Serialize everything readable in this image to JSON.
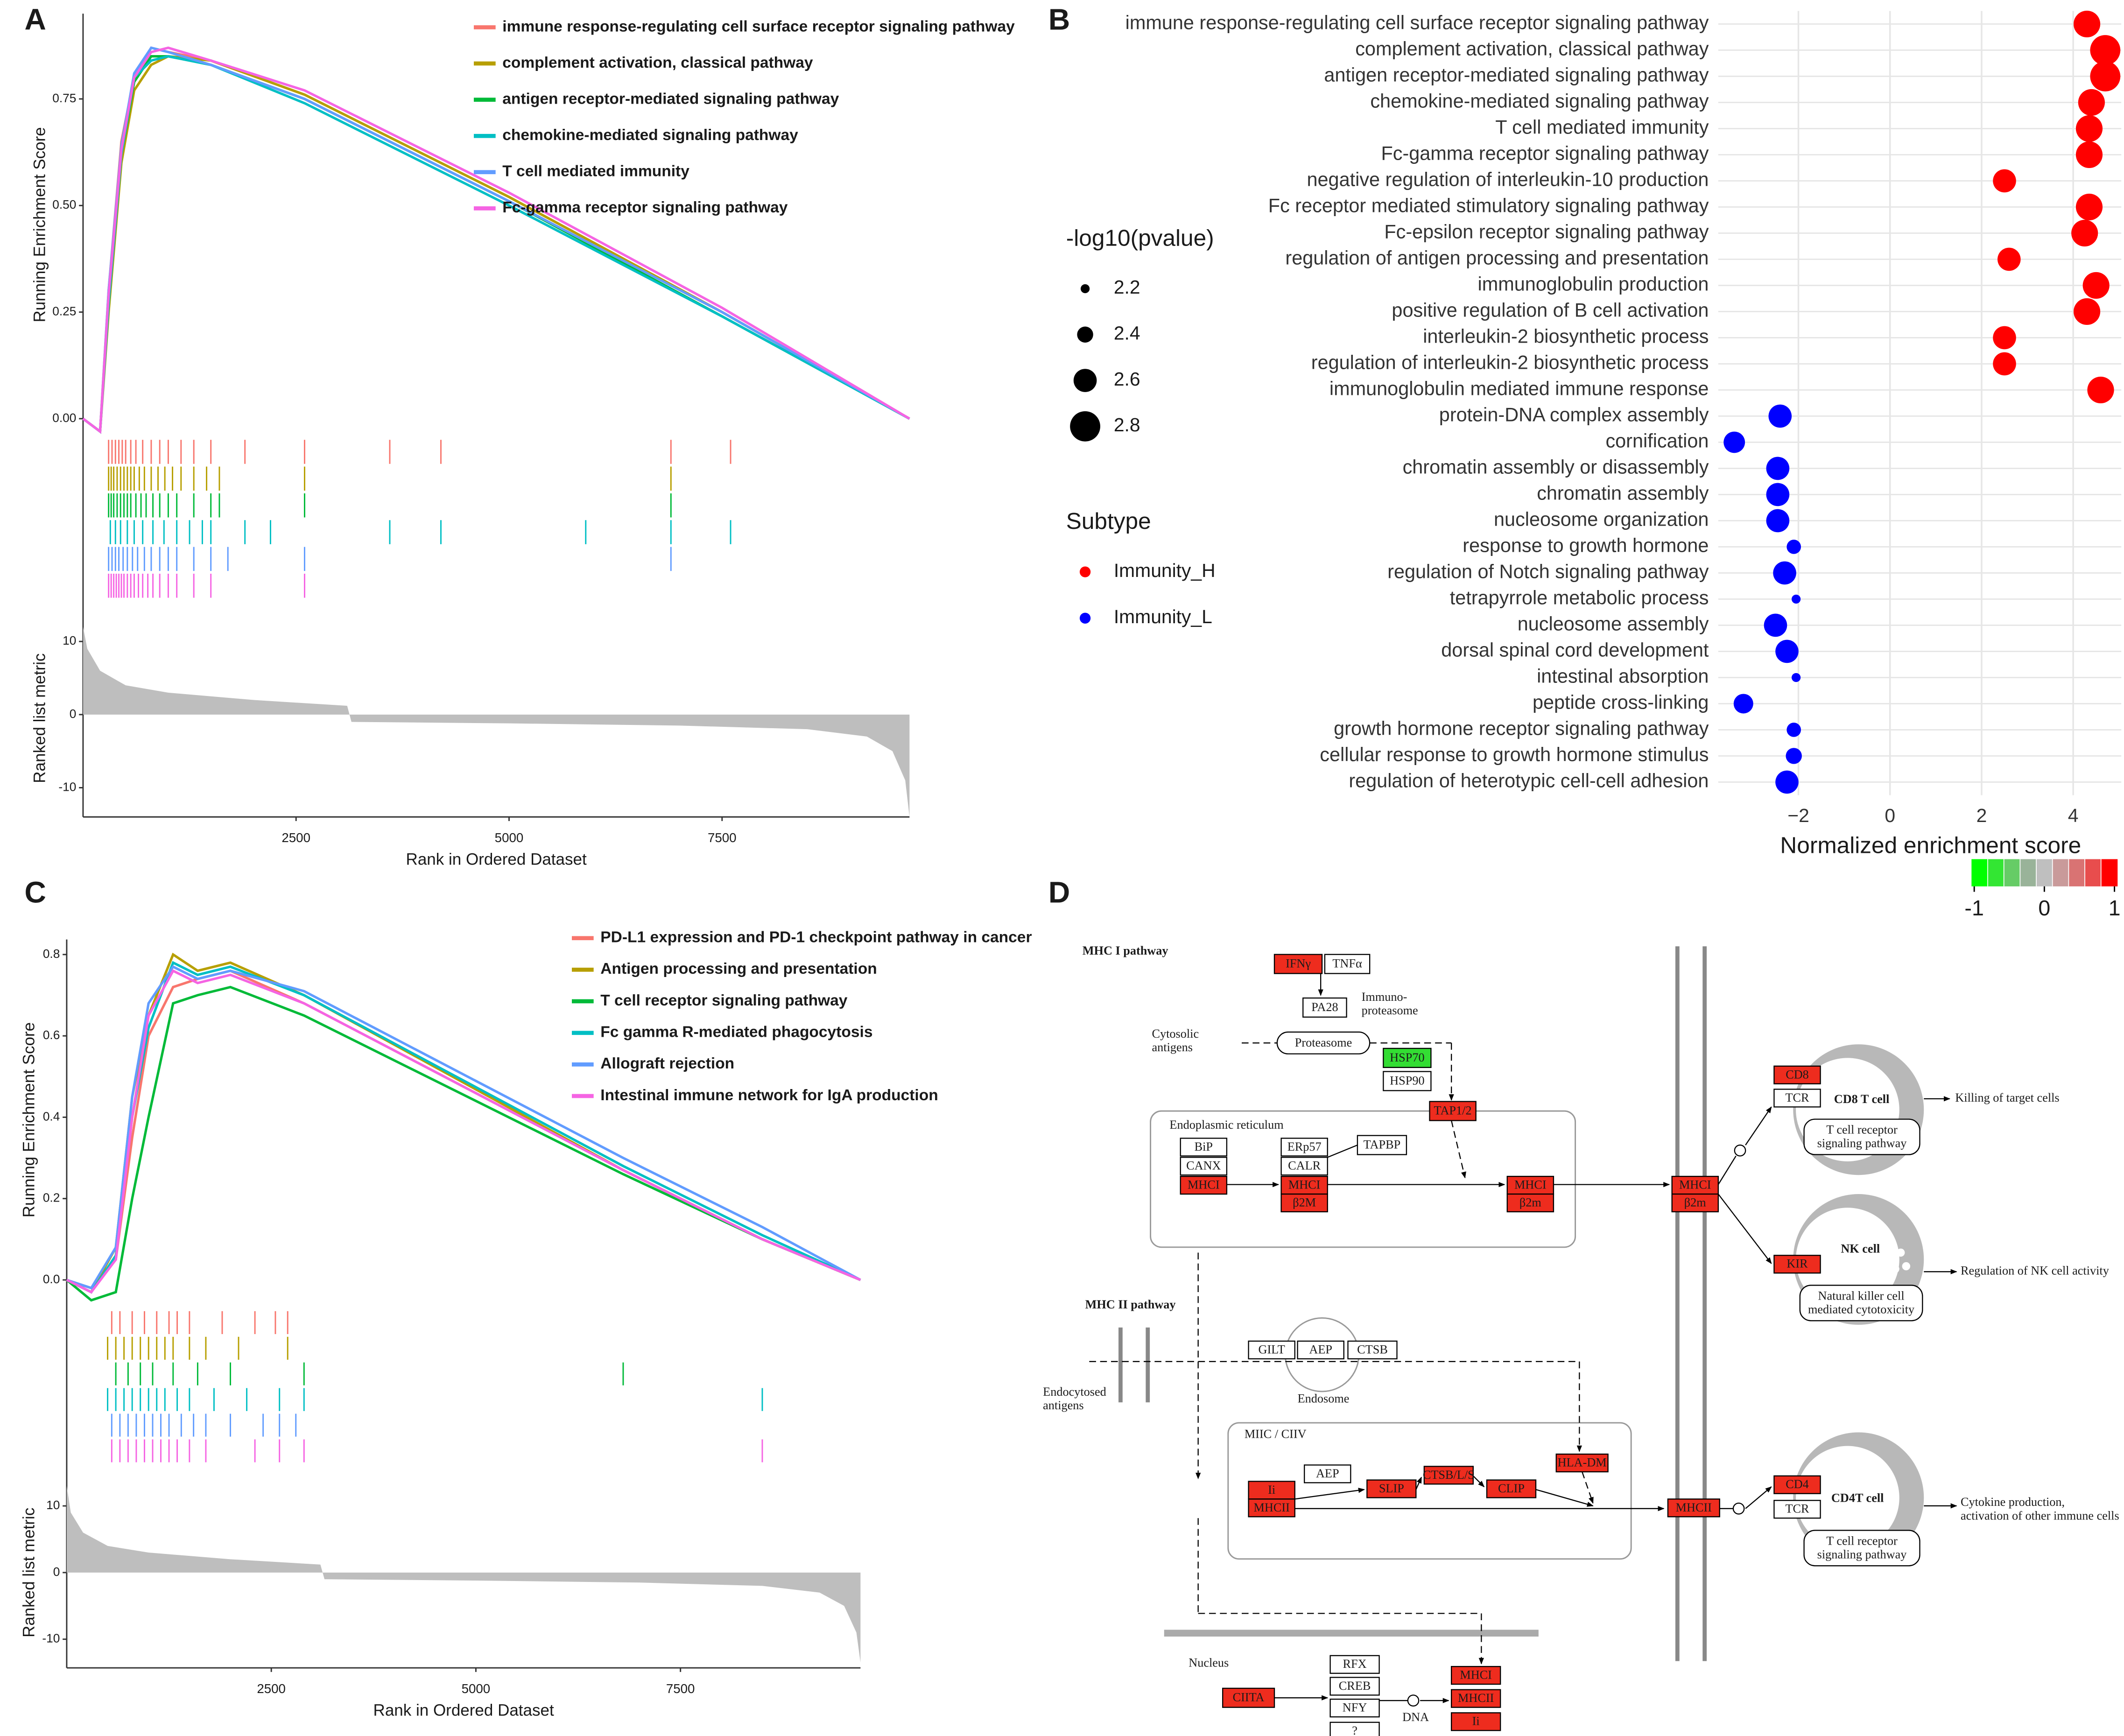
{
  "chart_data": [
    {
      "type": "gsea",
      "label": "A",
      "ylabel": "Running Enrichment Score",
      "xlabel": "Rank in Ordered Dataset",
      "xlim": [
        0,
        9700
      ],
      "xticks": [
        2500,
        5000,
        7500
      ],
      "ylim": [
        -0.04,
        0.95
      ],
      "yticks": [
        {
          "value": 0,
          "label": "0.00"
        },
        0.25,
        {
          "value": 0.5,
          "label": "0.50"
        },
        0.75
      ],
      "x": [
        0,
        200,
        300,
        450,
        600,
        800,
        1000,
        1500,
        2600,
        5000,
        7500,
        9700
      ],
      "series": [
        {
          "name": "immune response-regulating cell surface receptor signaling pathway",
          "color": "#f8766d",
          "values": [
            0,
            -0.03,
            0.3,
            0.65,
            0.8,
            0.87,
            0.86,
            0.84,
            0.76,
            0.52,
            0.25,
            0
          ],
          "hits": [
            300,
            340,
            380,
            420,
            460,
            500,
            560,
            620,
            700,
            800,
            900,
            1000,
            1150,
            1300,
            1500,
            1900,
            2600,
            3600,
            4200,
            6900,
            7600
          ]
        },
        {
          "name": "complement activation, classical pathway",
          "color": "#b79f00",
          "values": [
            0,
            -0.03,
            0.25,
            0.6,
            0.77,
            0.83,
            0.85,
            0.84,
            0.76,
            0.52,
            0.25,
            0
          ],
          "hits": [
            300,
            330,
            360,
            400,
            440,
            480,
            520,
            560,
            600,
            660,
            720,
            800,
            880,
            960,
            1050,
            1150,
            1300,
            1450,
            1600,
            2600,
            6900
          ]
        },
        {
          "name": "antigen receptor-mediated signaling pathway",
          "color": "#00ba38",
          "values": [
            0,
            -0.03,
            0.28,
            0.62,
            0.79,
            0.85,
            0.85,
            0.83,
            0.75,
            0.51,
            0.24,
            0
          ],
          "hits": [
            300,
            330,
            360,
            400,
            440,
            480,
            520,
            560,
            620,
            680,
            740,
            820,
            900,
            1000,
            1100,
            1300,
            1500,
            1600,
            2600,
            6900
          ]
        },
        {
          "name": "chemokine-mediated signaling pathway",
          "color": "#00bfc4",
          "values": [
            0,
            -0.03,
            0.27,
            0.62,
            0.8,
            0.84,
            0.85,
            0.83,
            0.74,
            0.5,
            0.24,
            0
          ],
          "hits": [
            320,
            380,
            440,
            520,
            600,
            700,
            820,
            950,
            1100,
            1250,
            1400,
            1500,
            1900,
            2200,
            3600,
            4200,
            5900,
            6900,
            7600
          ]
        },
        {
          "name": "T cell mediated immunity",
          "color": "#619cff",
          "values": [
            0,
            -0.03,
            0.3,
            0.64,
            0.81,
            0.87,
            0.86,
            0.83,
            0.75,
            0.51,
            0.25,
            0
          ],
          "hits": [
            300,
            340,
            380,
            420,
            470,
            520,
            580,
            640,
            720,
            800,
            900,
            1000,
            1100,
            1300,
            1500,
            1700,
            2600,
            6900
          ]
        },
        {
          "name": "Fc-gamma receptor signaling pathway",
          "color": "#f564e3",
          "values": [
            0,
            -0.03,
            0.29,
            0.63,
            0.8,
            0.86,
            0.87,
            0.84,
            0.77,
            0.53,
            0.26,
            0
          ],
          "hits": [
            300,
            330,
            360,
            390,
            420,
            450,
            480,
            520,
            560,
            600,
            650,
            700,
            760,
            820,
            900,
            1000,
            1100,
            1300,
            1500,
            2600
          ]
        }
      ],
      "metric": {
        "ylabel": "Ranked list metric",
        "color": "#bebebe",
        "ylim": [
          -14,
          13
        ],
        "yticks": [
          -10,
          0,
          10
        ],
        "x": [
          0,
          50,
          200,
          500,
          1000,
          2000,
          3100,
          3150,
          5000,
          7000,
          8500,
          9200,
          9500,
          9650,
          9700
        ],
        "values": [
          12,
          9,
          6,
          4,
          3,
          2,
          1.2,
          -1,
          -1.2,
          -1.5,
          -2,
          -3,
          -5,
          -9,
          -14
        ]
      }
    },
    {
      "type": "dot",
      "label": "B",
      "xlabel": "Normalized enrichment score",
      "xlim": [
        -3.75,
        5.05
      ],
      "xticks": [
        {
          "value": -2,
          "label": "−2"
        },
        0,
        2,
        4
      ],
      "grid": true,
      "categories": [
        "immune response-regulating cell surface receptor signaling pathway",
        "complement activation, classical pathway",
        "antigen receptor-mediated signaling pathway",
        "chemokine-mediated signaling pathway",
        "T cell mediated immunity",
        "Fc-gamma receptor signaling pathway",
        "negative regulation of interleukin-10 production",
        "Fc receptor mediated stimulatory signaling pathway",
        "Fc-epsilon receptor signaling pathway",
        "regulation of antigen processing and presentation",
        "immunoglobulin production",
        "positive regulation of B cell activation",
        "interleukin-2 biosynthetic process",
        "regulation of interleukin-2 biosynthetic process",
        "immunoglobulin mediated immune response",
        "protein-DNA complex assembly",
        "cornification",
        "chromatin assembly or disassembly",
        "chromatin assembly",
        "nucleosome organization",
        "response to growth hormone",
        "regulation of Notch signaling pathway",
        "tetrapyrrole metabolic process",
        "nucleosome assembly",
        "dorsal spinal cord development",
        "intestinal absorption",
        "peptide cross-linking",
        "growth hormone receptor signaling pathway",
        "cellular response to growth hormone stimulus",
        "regulation of heterotypic cell-cell adhesion"
      ],
      "legend_title": "Subtype",
      "series": [
        {
          "name": "Immunity_H",
          "color": "#ff0000",
          "values": [
            4.3,
            4.7,
            4.7,
            4.4,
            4.35,
            4.35,
            2.5,
            4.35,
            4.25,
            2.6,
            4.5,
            4.3,
            2.5,
            2.5,
            4.6,
            null,
            null,
            null,
            null,
            null,
            null,
            null,
            null,
            null,
            null,
            null,
            null,
            null,
            null,
            null
          ],
          "sizes": [
            2.7,
            2.8,
            2.8,
            2.7,
            2.7,
            2.7,
            2.6,
            2.7,
            2.7,
            2.6,
            2.7,
            2.7,
            2.6,
            2.6,
            2.7,
            null,
            null,
            null,
            null,
            null,
            null,
            null,
            null,
            null,
            null,
            null,
            null,
            null,
            null,
            null
          ]
        },
        {
          "name": "Immunity_L",
          "color": "#0000ff",
          "values": [
            null,
            null,
            null,
            null,
            null,
            null,
            null,
            null,
            null,
            null,
            null,
            null,
            null,
            null,
            null,
            -2.4,
            -3.4,
            -2.45,
            -2.45,
            -2.45,
            -2.1,
            -2.3,
            -2.05,
            -2.5,
            -2.25,
            -2.05,
            -3.2,
            -2.1,
            -2.1,
            -2.25
          ],
          "sizes": [
            null,
            null,
            null,
            null,
            null,
            null,
            null,
            null,
            null,
            null,
            null,
            null,
            null,
            null,
            null,
            2.6,
            2.55,
            2.6,
            2.6,
            2.6,
            2.35,
            2.6,
            2.2,
            2.6,
            2.6,
            2.2,
            2.5,
            2.35,
            2.4,
            2.6
          ]
        }
      ],
      "size_legend": {
        "title": "-log10(pvalue)",
        "values": [
          2.2,
          2.4,
          2.6,
          2.8
        ]
      }
    },
    {
      "type": "gsea",
      "label": "C",
      "ylabel": "Running Enrichment Score",
      "xlabel": "Rank in Ordered Dataset",
      "xlim": [
        0,
        9700
      ],
      "xticks": [
        2500,
        5000,
        7500
      ],
      "ylim": [
        -0.05,
        0.837
      ],
      "yticks": [
        {
          "value": 0,
          "label": "0.0"
        },
        0.2,
        0.4,
        0.6,
        0.8
      ],
      "x": [
        0,
        300,
        600,
        800,
        1000,
        1300,
        1600,
        2000,
        2900,
        6800,
        8500,
        9700
      ],
      "series": [
        {
          "name": "PD-L1 expression and PD-1 checkpoint pathway in cancer",
          "color": "#f8766d",
          "values": [
            0,
            -0.02,
            0.05,
            0.35,
            0.6,
            0.72,
            0.74,
            0.76,
            0.68,
            0.27,
            0.1,
            0
          ],
          "hits": [
            550,
            650,
            800,
            950,
            1100,
            1250,
            1350,
            1500,
            1900,
            2300,
            2550,
            2700
          ]
        },
        {
          "name": "Antigen processing and presentation",
          "color": "#b79f00",
          "values": [
            0,
            -0.03,
            0.08,
            0.45,
            0.65,
            0.8,
            0.76,
            0.78,
            0.7,
            0.27,
            0.1,
            0
          ],
          "hits": [
            500,
            600,
            700,
            800,
            900,
            1000,
            1100,
            1200,
            1300,
            1500,
            1700,
            2100,
            2700
          ]
        },
        {
          "name": "T cell receptor signaling pathway",
          "color": "#00ba38",
          "values": [
            0,
            -0.05,
            -0.03,
            0.2,
            0.4,
            0.68,
            0.7,
            0.72,
            0.65,
            0.26,
            0.1,
            0
          ],
          "hits": [
            600,
            750,
            900,
            1050,
            1300,
            1600,
            2000,
            2900,
            6800
          ]
        },
        {
          "name": "Fc gamma R-mediated phagocytosis",
          "color": "#00bfc4",
          "values": [
            0,
            -0.03,
            0.06,
            0.4,
            0.62,
            0.78,
            0.75,
            0.77,
            0.7,
            0.28,
            0.11,
            0
          ],
          "hits": [
            500,
            600,
            700,
            800,
            900,
            1000,
            1100,
            1200,
            1350,
            1500,
            1800,
            2200,
            2600,
            2900,
            8500
          ]
        },
        {
          "name": "Allograft rejection",
          "color": "#619cff",
          "values": [
            0,
            -0.02,
            0.08,
            0.45,
            0.68,
            0.77,
            0.74,
            0.76,
            0.71,
            0.3,
            0.13,
            0
          ],
          "hits": [
            550,
            650,
            750,
            850,
            950,
            1050,
            1150,
            1250,
            1400,
            1550,
            1700,
            2000,
            2400,
            2600,
            2800
          ]
        },
        {
          "name": "Intestinal immune network for IgA production",
          "color": "#f564e3",
          "values": [
            0,
            -0.03,
            0.05,
            0.4,
            0.65,
            0.76,
            0.73,
            0.75,
            0.68,
            0.27,
            0.1,
            0
          ],
          "hits": [
            550,
            650,
            750,
            850,
            950,
            1050,
            1150,
            1250,
            1350,
            1500,
            1700,
            2300,
            2600,
            2900,
            8500
          ]
        }
      ],
      "metric": {
        "ylabel": "Ranked list metric",
        "color": "#bebebe",
        "ylim": [
          -14.3,
          14.3
        ],
        "yticks": [
          -10,
          0,
          10
        ],
        "x": [
          0,
          50,
          200,
          500,
          1000,
          2000,
          3100,
          3150,
          5000,
          7000,
          8500,
          9200,
          9500,
          9650,
          9700
        ],
        "values": [
          13,
          9,
          6,
          4,
          3,
          2,
          1.2,
          -1,
          -1.2,
          -1.5,
          -2,
          -3,
          -5,
          -9,
          -13.5
        ]
      }
    }
  ],
  "diagram": {
    "label": "D",
    "color_scale": {
      "lim": [
        -1,
        1
      ],
      "ticks": [
        -1,
        0,
        1
      ],
      "colors": [
        "#00ff00",
        "#33e633",
        "#66cc66",
        "#99b399",
        "#bfbfbf",
        "#c99a9a",
        "#d97373",
        "#e84d4d",
        "#ff0000"
      ]
    },
    "boxes": [
      {
        "label": "IFNγ",
        "color": "#ee2c1e"
      },
      {
        "label": "TNFα",
        "color": "#ffffff"
      },
      {
        "label": "PA28",
        "color": "#ffffff"
      },
      {
        "label": "Proteasome",
        "color": "#ffffff"
      },
      {
        "label": "HSP70",
        "color": "#33dd33"
      },
      {
        "label": "HSP90",
        "color": "#ffffff"
      },
      {
        "label": "TAP1/2",
        "color": "#ee2c1e"
      },
      {
        "label": "BiP",
        "color": "#ffffff"
      },
      {
        "label": "CANX",
        "color": "#ffffff"
      },
      {
        "label": "MHCI",
        "color": "#ee2c1e"
      },
      {
        "label": "ERp57",
        "color": "#ffffff"
      },
      {
        "label": "CALR",
        "color": "#ffffff"
      },
      {
        "label": "MHCI",
        "color": "#ee2c1e"
      },
      {
        "label": "β2M",
        "color": "#ee2c1e"
      },
      {
        "label": "TAPBP",
        "color": "#ffffff"
      },
      {
        "label": "MHCI",
        "color": "#ee2c1e"
      },
      {
        "label": "β2m",
        "color": "#ee2c1e"
      },
      {
        "label": "MHCI",
        "color": "#ee2c1e"
      },
      {
        "label": "β2m",
        "color": "#ee2c1e"
      },
      {
        "label": "CD8",
        "color": "#ee2c1e"
      },
      {
        "label": "TCR",
        "color": "#ffffff"
      },
      {
        "label": [
          "T cell receptor",
          "signaling pathway"
        ],
        "color": "#ffffff"
      },
      {
        "label": "KIR",
        "color": "#ee2c1e"
      },
      {
        "label": [
          "Natural killer cell",
          "mediated cytotoxicity"
        ],
        "color": "#ffffff"
      },
      {
        "label": "GILT",
        "color": "#ffffff"
      },
      {
        "label": "AEP",
        "color": "#ffffff"
      },
      {
        "label": "CTSB",
        "color": "#ffffff"
      },
      {
        "label": "AEP",
        "color": "#ffffff"
      },
      {
        "label": "Ii",
        "color": "#ee2c1e"
      },
      {
        "label": "MHCII",
        "color": "#ee2c1e"
      },
      {
        "label": "SLIP",
        "color": "#ee2c1e"
      },
      {
        "label": "CTSB/L/S",
        "color": "#ee2c1e"
      },
      {
        "label": "CLIP",
        "color": "#ee2c1e"
      },
      {
        "label": "HLA-DM",
        "color": "#ee2c1e"
      },
      {
        "label": "MHCII",
        "color": "#ee2c1e"
      },
      {
        "label": "CD4",
        "color": "#ee2c1e"
      },
      {
        "label": "TCR",
        "color": "#ffffff"
      },
      {
        "label": [
          "T cell receptor",
          "signaling pathway"
        ],
        "color": "#ffffff"
      },
      {
        "label": "CIITA",
        "color": "#ee2c1e"
      },
      {
        "label": "RFX",
        "color": "#ffffff"
      },
      {
        "label": "CREB",
        "color": "#ffffff"
      },
      {
        "label": "NFY",
        "color": "#ffffff"
      },
      {
        "label": "?",
        "color": "#ffffff"
      },
      {
        "label": "MHCI",
        "color": "#ee2c1e"
      },
      {
        "label": "MHCII",
        "color": "#ee2c1e"
      },
      {
        "label": "Ii",
        "color": "#ee2c1e"
      }
    ],
    "texts": [
      "MHC I pathway",
      [
        "Immuno-",
        "proteasome"
      ],
      [
        "Cytosolic",
        "antigens"
      ],
      "Endoplasmic reticulum",
      "CD8 T cell",
      "Killing of target cells",
      "NK cell",
      "Regulation of NK cell activity",
      "MHC II pathway",
      [
        "Endocytosed",
        "antigens"
      ],
      "Endosome",
      "MIIC / CIIV",
      "CD4T cell",
      [
        "Cytokine production,",
        "activation of other immune cells"
      ],
      "Nucleus",
      "DNA"
    ]
  }
}
